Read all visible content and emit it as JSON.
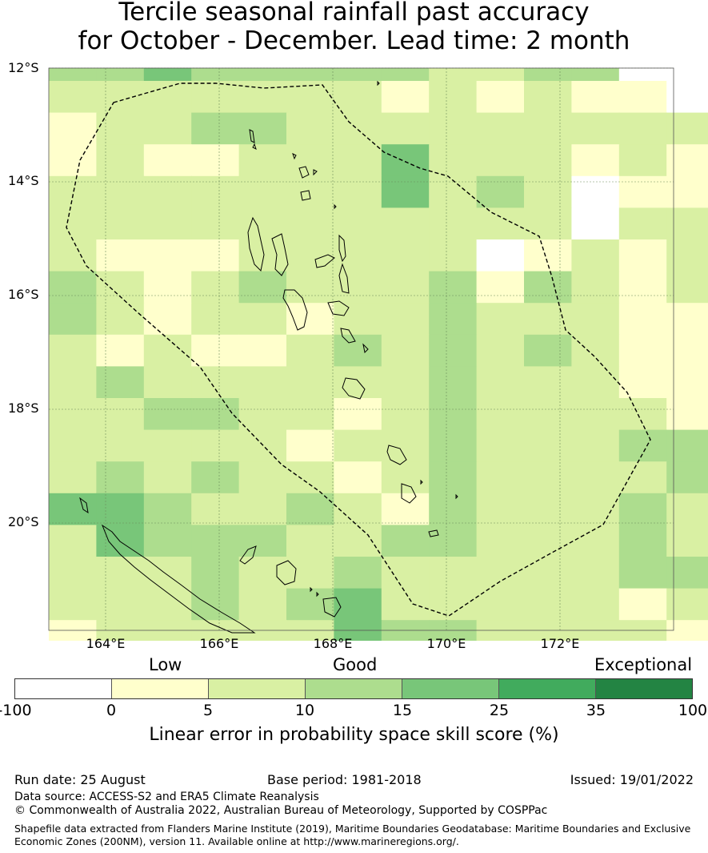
{
  "title": {
    "line1": "Tercile seasonal rainfall past accuracy",
    "line2": "for October - December. Lead time: 2 month"
  },
  "map": {
    "lat_labels": [
      "12°S",
      "14°S",
      "16°S",
      "18°S",
      "20°S"
    ],
    "lon_labels": [
      "164°E",
      "166°E",
      "168°E",
      "170°E",
      "172°E"
    ],
    "grid": {
      "lon_range": [
        163,
        174
      ],
      "lat_range": [
        -12,
        -21.9
      ],
      "rows": [
        [
          3,
          3,
          4,
          3,
          3,
          3,
          3,
          3,
          2,
          2,
          3,
          3,
          -1,
          -1
        ],
        [
          2,
          2,
          2,
          2,
          2,
          2,
          2,
          1,
          2,
          1,
          2,
          1,
          1,
          -1
        ],
        [
          1,
          2,
          2,
          3,
          3,
          2,
          2,
          2,
          2,
          2,
          2,
          2,
          2,
          2
        ],
        [
          1,
          2,
          1,
          1,
          2,
          2,
          2,
          4,
          2,
          2,
          2,
          1,
          2,
          1
        ],
        [
          2,
          2,
          2,
          2,
          2,
          2,
          2,
          4,
          2,
          3,
          2,
          -1,
          1,
          1
        ],
        [
          2,
          2,
          2,
          2,
          2,
          2,
          2,
          2,
          2,
          2,
          2,
          -1,
          2,
          2
        ],
        [
          2,
          1,
          1,
          1,
          2,
          2,
          2,
          2,
          2,
          -1,
          1,
          2,
          1,
          2
        ],
        [
          3,
          2,
          1,
          2,
          3,
          2,
          2,
          2,
          3,
          1,
          3,
          2,
          1,
          2
        ],
        [
          3,
          2,
          1,
          2,
          2,
          1,
          2,
          2,
          3,
          2,
          2,
          2,
          1,
          1
        ],
        [
          2,
          1,
          2,
          1,
          1,
          2,
          3,
          2,
          3,
          2,
          3,
          2,
          1,
          1
        ],
        [
          2,
          3,
          2,
          2,
          2,
          2,
          2,
          2,
          3,
          2,
          2,
          2,
          1,
          1
        ],
        [
          2,
          2,
          3,
          3,
          2,
          2,
          1,
          2,
          3,
          2,
          2,
          2,
          2,
          1
        ],
        [
          2,
          2,
          2,
          2,
          2,
          1,
          2,
          2,
          3,
          2,
          2,
          2,
          3,
          3
        ],
        [
          2,
          3,
          2,
          3,
          2,
          2,
          1,
          2,
          3,
          2,
          2,
          2,
          2,
          3
        ],
        [
          4,
          4,
          3,
          2,
          2,
          3,
          2,
          1,
          3,
          2,
          2,
          2,
          3,
          2
        ],
        [
          2,
          4,
          3,
          3,
          3,
          2,
          2,
          3,
          3,
          2,
          2,
          2,
          3,
          2
        ],
        [
          2,
          2,
          2,
          3,
          2,
          2,
          3,
          2,
          2,
          2,
          2,
          2,
          3,
          3
        ],
        [
          2,
          2,
          2,
          3,
          2,
          3,
          4,
          2,
          2,
          2,
          2,
          2,
          1,
          2
        ],
        [
          1,
          2,
          2,
          2,
          2,
          2,
          4,
          3,
          3,
          2,
          2,
          2,
          2,
          1
        ],
        [
          2,
          1,
          2,
          2,
          2,
          2,
          3,
          3,
          3,
          3,
          3,
          2,
          2,
          2
        ]
      ]
    }
  },
  "legend": {
    "categories": [
      "Low",
      "Good",
      "Exceptional"
    ],
    "ticks": [
      "-100",
      "0",
      "5",
      "10",
      "15",
      "25",
      "35",
      "100"
    ],
    "colors": [
      "#ffffff",
      "#ffffcc",
      "#d9f0a3",
      "#addd8e",
      "#78c679",
      "#41ab5d",
      "#238443"
    ],
    "label": "Linear error in probability space skill score (%)"
  },
  "footer": {
    "run_date": "Run date: 25 August",
    "base_period": "Base period: 1981-2018",
    "issued": "Issued: 19/01/2022",
    "data_source": "Data source: ACCESS-S2 and ERA5 Climate Reanalysis",
    "copyright": "© Commonwealth of Australia 2022, Australian Bureau of Meteorology, Supported by COSPPac",
    "shapefile": "Shapefile data extracted from Flanders Marine Institute (2019), Maritime Boundaries Geodatabase: Maritime Boundaries and Exclusive Economic Zones (200NM), version 11. Available online at http://www.marineregions.org/."
  }
}
